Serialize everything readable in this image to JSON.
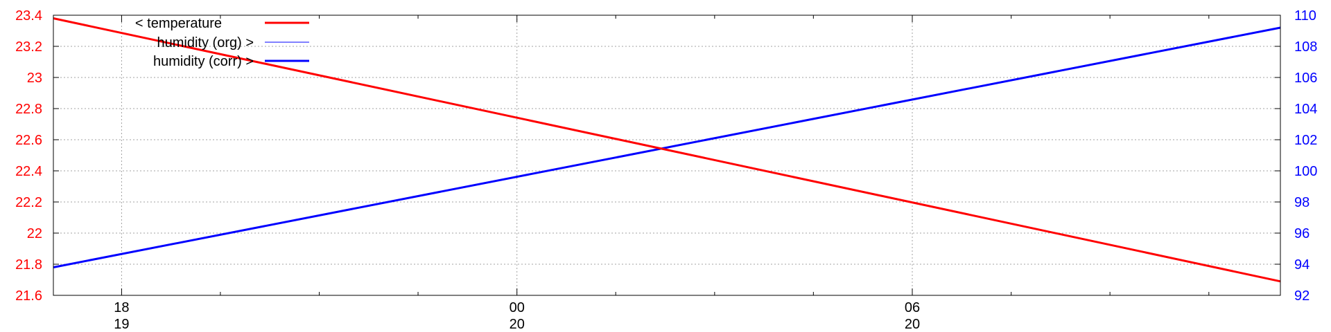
{
  "chart_data": {
    "type": "line",
    "x_axis": {
      "ticks": [
        {
          "hour": "18",
          "day": "19",
          "pos": 0.0556
        },
        {
          "hour": "00",
          "day": "20",
          "pos": 0.3778
        },
        {
          "hour": "06",
          "day": "20",
          "pos": 0.7
        }
      ],
      "minor_ticks": [
        0.1361,
        0.2167,
        0.2972,
        0.4583,
        0.5389,
        0.6194,
        0.7806,
        0.8611,
        0.9417
      ]
    },
    "y_left": {
      "range": [
        21.6,
        23.4
      ],
      "ticks": [
        "21.6",
        "21.8",
        "22",
        "22.2",
        "22.4",
        "22.6",
        "22.8",
        "23",
        "23.2",
        "23.4"
      ],
      "color": "#ff0000"
    },
    "y_right": {
      "range": [
        92,
        110
      ],
      "ticks": [
        "92",
        "94",
        "96",
        "98",
        "100",
        "102",
        "104",
        "106",
        "108",
        "110"
      ],
      "color": "#0000ff"
    },
    "grid": true,
    "legend_position": "top-left",
    "series": [
      {
        "name": "< temperature",
        "axis": "left",
        "color": "#ff0000",
        "width": 3,
        "x": [
          0,
          1
        ],
        "y": [
          23.38,
          21.69
        ]
      },
      {
        "name": "humidity (org) >",
        "axis": "right",
        "color": "#0000ff",
        "width": 1,
        "x": [
          0,
          1
        ],
        "y": [
          93.8,
          109.2
        ]
      },
      {
        "name": "humidity (corr) >",
        "axis": "right",
        "color": "#0000ff",
        "width": 3,
        "x": [
          0,
          1
        ],
        "y": [
          93.8,
          109.2
        ]
      }
    ]
  }
}
